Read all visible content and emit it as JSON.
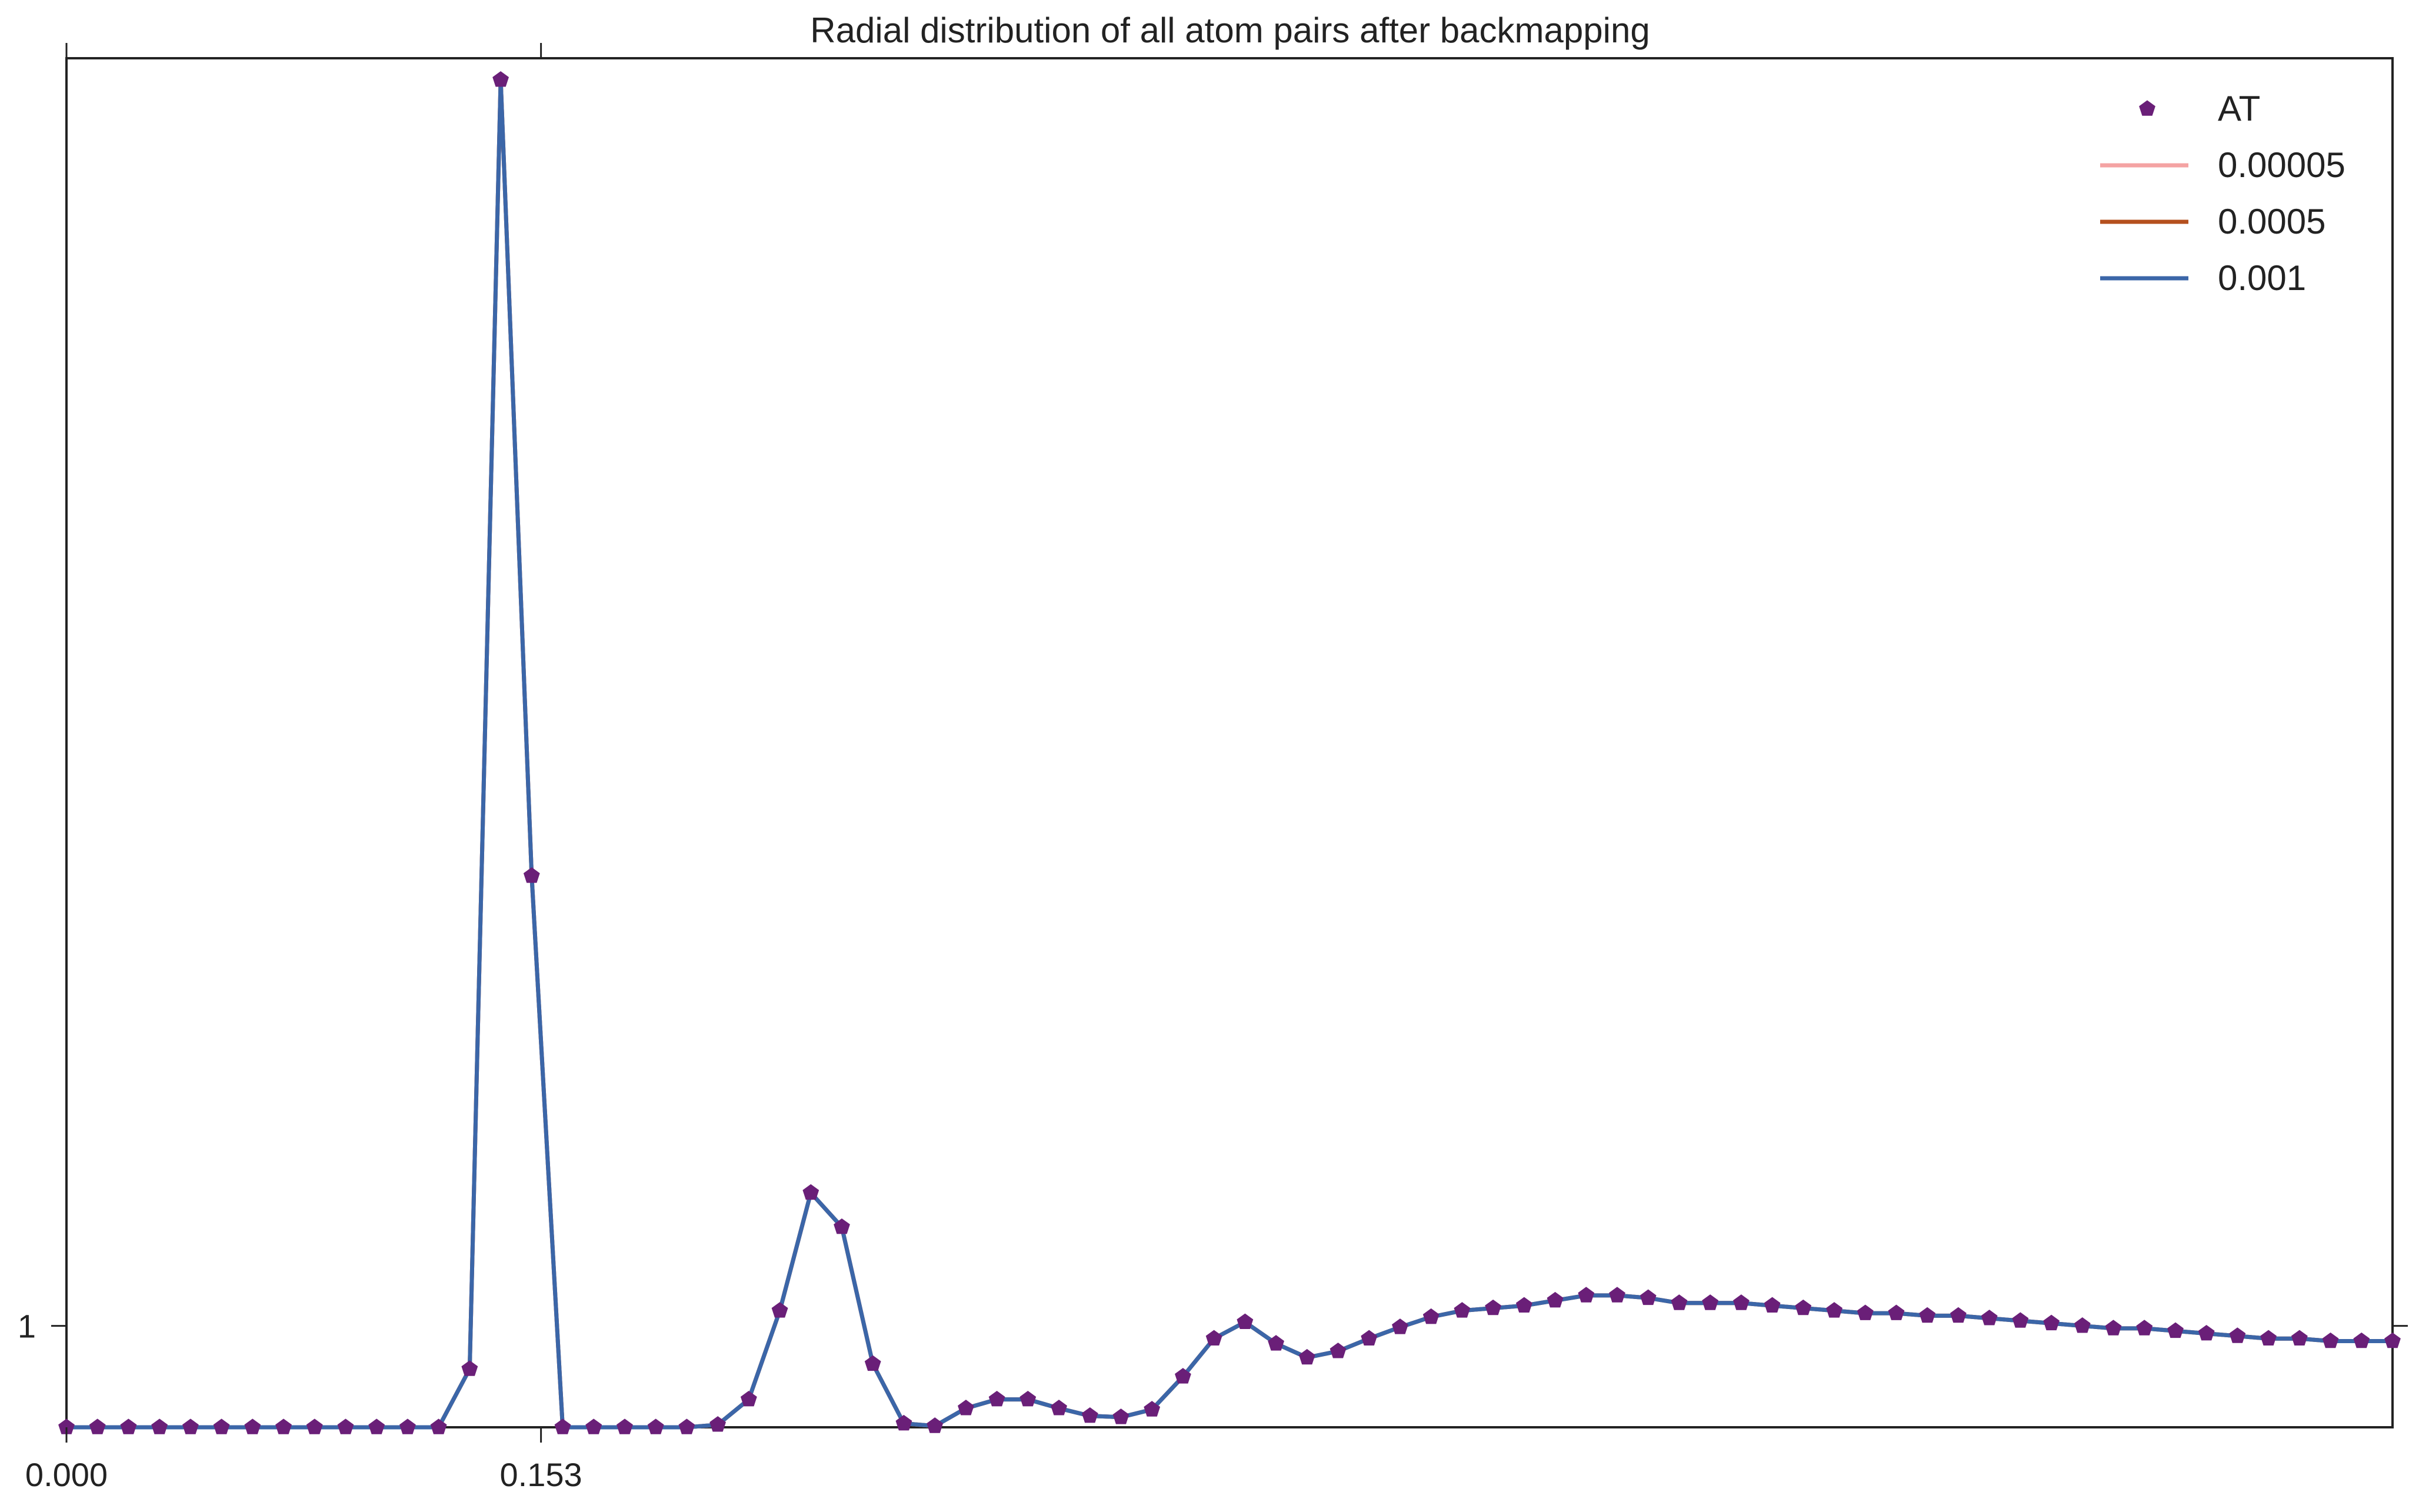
{
  "chart_data": {
    "type": "line",
    "title": "Radial distribution of all atom pairs after backmapping",
    "xlabel": "",
    "ylabel": "",
    "xlim": [
      0,
      0.75
    ],
    "ylim": [
      0.92,
      2.0
    ],
    "x_ticks": [
      {
        "value": 0,
        "label": "0.000"
      },
      {
        "value": 0.153,
        "label": "0.153"
      }
    ],
    "y_ticks": [
      {
        "value": 1,
        "label": "1"
      }
    ],
    "legend": {
      "position": "top-right"
    },
    "grid": false,
    "x": [
      0.0,
      0.01,
      0.02,
      0.03,
      0.04,
      0.05,
      0.06,
      0.07,
      0.08,
      0.09,
      0.1,
      0.11,
      0.12,
      0.13,
      0.14,
      0.15,
      0.16,
      0.17,
      0.18,
      0.19,
      0.2,
      0.21,
      0.22,
      0.23,
      0.24,
      0.25,
      0.26,
      0.27,
      0.28,
      0.29,
      0.3,
      0.31,
      0.32,
      0.33,
      0.34,
      0.35,
      0.36,
      0.37,
      0.38,
      0.39,
      0.4,
      0.41,
      0.42,
      0.43,
      0.44,
      0.45,
      0.46,
      0.47,
      0.48,
      0.49,
      0.5,
      0.51,
      0.52,
      0.53,
      0.54,
      0.55,
      0.56,
      0.57,
      0.58,
      0.59,
      0.6,
      0.61,
      0.62,
      0.63,
      0.64,
      0.65,
      0.66,
      0.67,
      0.68,
      0.69,
      0.7,
      0.71,
      0.72,
      0.73,
      0.74,
      0.75
    ],
    "series": [
      {
        "name": "AT",
        "kind": "markers",
        "color": "#6a1f78",
        "values": [
          0.92,
          0.92,
          0.92,
          0.92,
          0.92,
          0.92,
          0.92,
          0.92,
          0.92,
          0.92,
          0.92,
          0.92,
          0.92,
          0.966,
          1.983,
          1.355,
          0.92,
          0.92,
          0.92,
          0.92,
          0.92,
          0.922,
          0.942,
          1.012,
          1.105,
          1.078,
          0.97,
          0.923,
          0.921,
          0.935,
          0.942,
          0.942,
          0.935,
          0.929,
          0.928,
          0.934,
          0.96,
          0.99,
          1.003,
          0.986,
          0.975,
          0.98,
          0.99,
          0.999,
          1.007,
          1.012,
          1.014,
          1.016,
          1.02,
          1.024,
          1.024,
          1.022,
          1.018,
          1.018,
          1.018,
          1.016,
          1.014,
          1.012,
          1.01,
          1.01,
          1.008,
          1.008,
          1.006,
          1.004,
          1.002,
          1.0,
          0.998,
          0.998,
          0.996,
          0.994,
          0.992,
          0.99,
          0.99,
          0.988,
          0.988,
          0.988
        ]
      },
      {
        "name": "0.00005",
        "kind": "line",
        "color": "#f4a3a3",
        "values": [
          0.92,
          0.92,
          0.92,
          0.92,
          0.92,
          0.92,
          0.92,
          0.92,
          0.92,
          0.92,
          0.92,
          0.92,
          0.92,
          0.966,
          1.983,
          1.355,
          0.92,
          0.92,
          0.92,
          0.92,
          0.92,
          0.922,
          0.942,
          1.012,
          1.105,
          1.078,
          0.97,
          0.923,
          0.921,
          0.935,
          0.942,
          0.942,
          0.935,
          0.929,
          0.928,
          0.934,
          0.96,
          0.99,
          1.003,
          0.986,
          0.975,
          0.98,
          0.99,
          0.999,
          1.007,
          1.012,
          1.014,
          1.016,
          1.02,
          1.024,
          1.024,
          1.022,
          1.018,
          1.018,
          1.018,
          1.016,
          1.014,
          1.012,
          1.01,
          1.01,
          1.008,
          1.008,
          1.006,
          1.004,
          1.002,
          1.0,
          0.998,
          0.998,
          0.996,
          0.994,
          0.992,
          0.99,
          0.99,
          0.988,
          0.988,
          0.988
        ]
      },
      {
        "name": "0.0005",
        "kind": "line",
        "color": "#b5501e",
        "values": [
          0.92,
          0.92,
          0.92,
          0.92,
          0.92,
          0.92,
          0.92,
          0.92,
          0.92,
          0.92,
          0.92,
          0.92,
          0.92,
          0.966,
          1.983,
          1.355,
          0.92,
          0.92,
          0.92,
          0.92,
          0.92,
          0.922,
          0.942,
          1.012,
          1.105,
          1.078,
          0.97,
          0.923,
          0.921,
          0.935,
          0.942,
          0.942,
          0.935,
          0.929,
          0.928,
          0.934,
          0.96,
          0.99,
          1.003,
          0.986,
          0.975,
          0.98,
          0.99,
          0.999,
          1.007,
          1.012,
          1.014,
          1.016,
          1.02,
          1.024,
          1.024,
          1.022,
          1.018,
          1.018,
          1.018,
          1.016,
          1.014,
          1.012,
          1.01,
          1.01,
          1.008,
          1.008,
          1.006,
          1.004,
          1.002,
          1.0,
          0.998,
          0.998,
          0.996,
          0.994,
          0.992,
          0.99,
          0.99,
          0.988,
          0.988,
          0.988
        ]
      },
      {
        "name": "0.001",
        "kind": "line",
        "color": "#3b66a8",
        "values": [
          0.92,
          0.92,
          0.92,
          0.92,
          0.92,
          0.92,
          0.92,
          0.92,
          0.92,
          0.92,
          0.92,
          0.92,
          0.92,
          0.966,
          1.983,
          1.355,
          0.92,
          0.92,
          0.92,
          0.92,
          0.92,
          0.922,
          0.942,
          1.012,
          1.105,
          1.078,
          0.97,
          0.923,
          0.921,
          0.935,
          0.942,
          0.942,
          0.935,
          0.929,
          0.928,
          0.934,
          0.96,
          0.99,
          1.003,
          0.986,
          0.975,
          0.98,
          0.99,
          0.999,
          1.007,
          1.012,
          1.014,
          1.016,
          1.02,
          1.024,
          1.024,
          1.022,
          1.018,
          1.018,
          1.018,
          1.016,
          1.014,
          1.012,
          1.01,
          1.01,
          1.008,
          1.008,
          1.006,
          1.004,
          1.002,
          1.0,
          0.998,
          0.998,
          0.996,
          0.994,
          0.992,
          0.99,
          0.99,
          0.988,
          0.988,
          0.988
        ]
      }
    ]
  }
}
